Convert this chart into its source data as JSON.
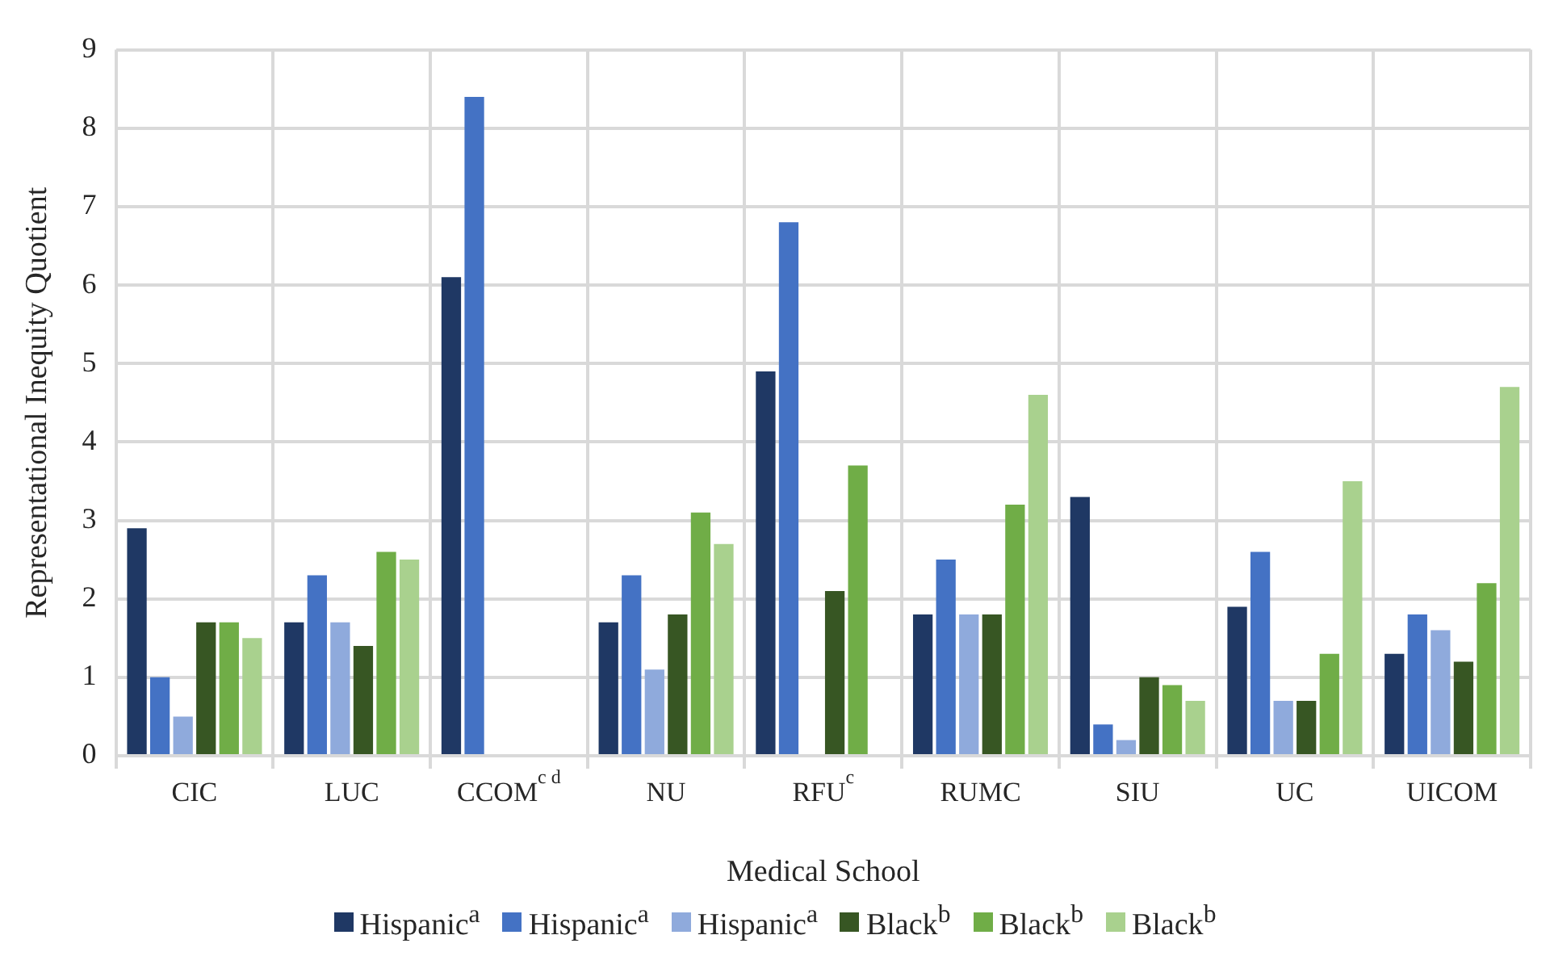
{
  "chart_data": {
    "type": "bar",
    "xlabel": "Medical School",
    "ylabel": "Representational Inequity Quotient",
    "categories": [
      "CIC",
      "LUC",
      "CCOM$^{c d}$",
      "NU",
      "RFU$^{c}$",
      "RUMC",
      "SIU",
      "UC",
      "UICOM"
    ],
    "series": [
      {
        "name": "Hispanic$^{a}$",
        "color": "#1f3864",
        "values": [
          2.9,
          1.7,
          6.1,
          1.7,
          4.9,
          1.8,
          3.3,
          1.9,
          1.3
        ]
      },
      {
        "name": "Hispanic$^{a}$",
        "color": "#4472c4",
        "values": [
          1.0,
          2.3,
          8.4,
          2.3,
          6.8,
          2.5,
          0.4,
          2.6,
          1.8
        ]
      },
      {
        "name": "Hispanic$^{a}$",
        "color": "#8faadc",
        "values": [
          0.5,
          1.7,
          null,
          1.1,
          null,
          1.8,
          0.2,
          0.7,
          1.6
        ]
      },
      {
        "name": "Black$^{b}$",
        "color": "#375623",
        "values": [
          1.7,
          1.4,
          null,
          1.8,
          2.1,
          1.8,
          1.0,
          0.7,
          1.2
        ]
      },
      {
        "name": "Black$^{b}$",
        "color": "#70ad47",
        "values": [
          1.7,
          2.6,
          null,
          3.1,
          3.7,
          3.2,
          0.9,
          1.3,
          2.2
        ]
      },
      {
        "name": "Black$^{b}$",
        "color": "#a9d18e",
        "values": [
          1.5,
          2.5,
          null,
          2.7,
          null,
          4.6,
          0.7,
          3.5,
          4.7
        ]
      }
    ],
    "ylim": [
      0,
      9
    ],
    "yticks": [
      0,
      1,
      2,
      3,
      4,
      5,
      6,
      7,
      8,
      9
    ],
    "grid": true,
    "legend": "bottom"
  }
}
